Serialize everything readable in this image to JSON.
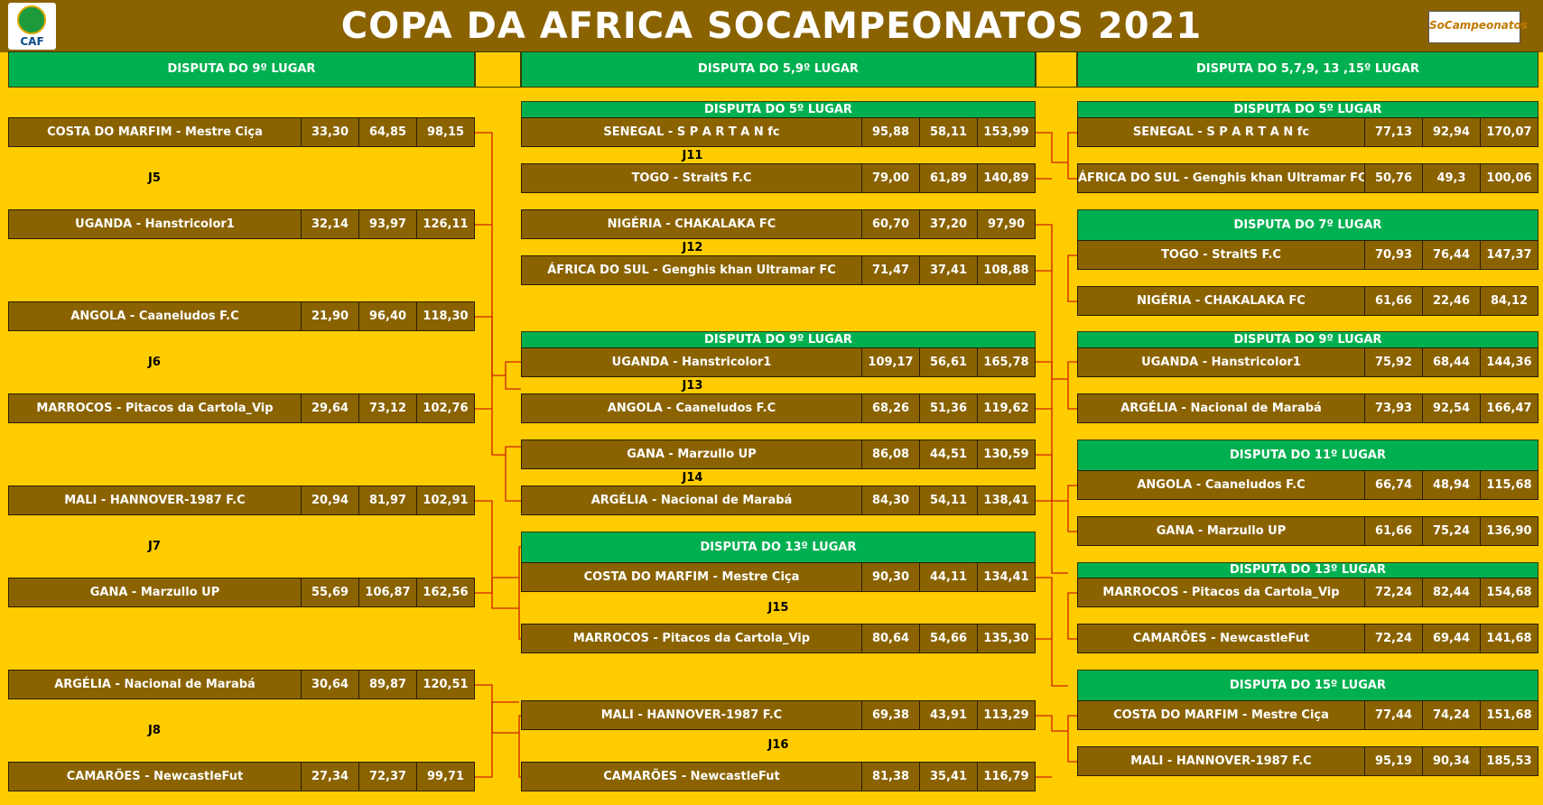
{
  "title": "COPA DA AFRICA SOCAMPEONATOS  2021",
  "logos": {
    "left": "CAF",
    "right": "SoCampeonatos"
  },
  "colors": {
    "background": "#ffcc00",
    "header": "#8a6300",
    "section": "#00b050",
    "bracket_line": "#cc2200"
  },
  "columns": [
    {
      "header": "DISPUTA DO 9º LUGAR",
      "rows": [
        {
          "team": "COSTA DO MARFIM - Mestre Ciça",
          "v1": "33,30",
          "v2": "64,85",
          "v3": "98,15"
        },
        {
          "team": "UGANDA - Hanstricolor1",
          "v1": "32,14",
          "v2": "93,97",
          "v3": "126,11"
        },
        {
          "team": "ANGOLA - Caaneludos F.C",
          "v1": "21,90",
          "v2": "96,40",
          "v3": "118,30"
        },
        {
          "team": "MARROCOS - Pitacos da Cartola_Vip",
          "v1": "29,64",
          "v2": "73,12",
          "v3": "102,76"
        },
        {
          "team": "MALI - HANNOVER-1987 F.C",
          "v1": "20,94",
          "v2": "81,97",
          "v3": "102,91"
        },
        {
          "team": "GANA - Marzullo UP",
          "v1": "55,69",
          "v2": "106,87",
          "v3": "162,56"
        },
        {
          "team": "ARGÉLIA - Nacional de Marabá",
          "v1": "30,64",
          "v2": "89,87",
          "v3": "120,51"
        },
        {
          "team": "CAMARÕES - NewcastleFut",
          "v1": "27,34",
          "v2": "72,37",
          "v3": "99,71"
        }
      ],
      "labels": [
        "J5",
        "J6",
        "J7",
        "J8"
      ]
    },
    {
      "header": "DISPUTA DO 5,9º LUGAR",
      "subheaders": [
        "DISPUTA DO 5º LUGAR",
        "DISPUTA DO 9º LUGAR",
        "DISPUTA DO 13º LUGAR"
      ],
      "rows": [
        {
          "team": "SENEGAL - S P A R T A N fc",
          "v1": "95,88",
          "v2": "58,11",
          "v3": "153,99"
        },
        {
          "team": "TOGO  - StraitS F.C",
          "v1": "79,00",
          "v2": "61,89",
          "v3": "140,89"
        },
        {
          "team": "NIGÉRIA - CHAKALAKA FC",
          "v1": "60,70",
          "v2": "37,20",
          "v3": "97,90"
        },
        {
          "team": "ÁFRICA DO SUL - Genghis khan Ultramar FC",
          "v1": "71,47",
          "v2": "37,41",
          "v3": "108,88"
        },
        {
          "team": "UGANDA - Hanstricolor1",
          "v1": "109,17",
          "v2": "56,61",
          "v3": "165,78"
        },
        {
          "team": "ANGOLA - Caaneludos F.C",
          "v1": "68,26",
          "v2": "51,36",
          "v3": "119,62"
        },
        {
          "team": "GANA - Marzullo UP",
          "v1": "86,08",
          "v2": "44,51",
          "v3": "130,59"
        },
        {
          "team": "ARGÉLIA - Nacional de Marabá",
          "v1": "84,30",
          "v2": "54,11",
          "v3": "138,41"
        },
        {
          "team": "COSTA DO MARFIM - Mestre Ciça",
          "v1": "90,30",
          "v2": "44,11",
          "v3": "134,41"
        },
        {
          "team": "MARROCOS - Pitacos da Cartola_Vip",
          "v1": "80,64",
          "v2": "54,66",
          "v3": "135,30"
        },
        {
          "team": "MALI - HANNOVER-1987 F.C",
          "v1": "69,38",
          "v2": "43,91",
          "v3": "113,29"
        },
        {
          "team": "CAMARÕES - NewcastleFut",
          "v1": "81,38",
          "v2": "35,41",
          "v3": "116,79"
        }
      ],
      "labels": [
        "J11",
        "J12",
        "J13",
        "J14",
        "J15",
        "J16"
      ]
    },
    {
      "header": "DISPUTA DO 5,7,9, 13 ,15º LUGAR",
      "subheaders": [
        "DISPUTA DO 5º LUGAR",
        "DISPUTA DO 7º LUGAR",
        "DISPUTA DO 9º LUGAR",
        "DISPUTA DO 11º LUGAR",
        "DISPUTA DO 13º LUGAR",
        "DISPUTA DO 15º LUGAR"
      ],
      "rows": [
        {
          "team": "SENEGAL - S P A R T A N fc",
          "v1": "77,13",
          "v2": "92,94",
          "v3": "170,07"
        },
        {
          "team": "ÁFRICA DO SUL - Genghis khan Ultramar FC",
          "v1": "50,76",
          "v2": "49,3",
          "v3": "100,06"
        },
        {
          "team": "TOGO  - StraitS F.C",
          "v1": "70,93",
          "v2": "76,44",
          "v3": "147,37"
        },
        {
          "team": "NIGÉRIA - CHAKALAKA FC",
          "v1": "61,66",
          "v2": "22,46",
          "v3": "84,12"
        },
        {
          "team": "UGANDA - Hanstricolor1",
          "v1": "75,92",
          "v2": "68,44",
          "v3": "144,36"
        },
        {
          "team": "ARGÉLIA - Nacional de Marabá",
          "v1": "73,93",
          "v2": "92,54",
          "v3": "166,47"
        },
        {
          "team": "ANGOLA - Caaneludos F.C",
          "v1": "66,74",
          "v2": "48,94",
          "v3": "115,68"
        },
        {
          "team": "GANA - Marzullo UP",
          "v1": "61,66",
          "v2": "75,24",
          "v3": "136,90"
        },
        {
          "team": "MARROCOS - Pitacos da Cartola_Vip",
          "v1": "72,24",
          "v2": "82,44",
          "v3": "154,68"
        },
        {
          "team": "CAMARÕES - NewcastleFut",
          "v1": "72,24",
          "v2": "69,44",
          "v3": "141,68"
        },
        {
          "team": "COSTA DO MARFIM - Mestre Ciça",
          "v1": "77,44",
          "v2": "74,24",
          "v3": "151,68"
        },
        {
          "team": "MALI - HANNOVER-1987 F.C",
          "v1": "95,19",
          "v2": "90,34",
          "v3": "185,53"
        }
      ]
    }
  ]
}
